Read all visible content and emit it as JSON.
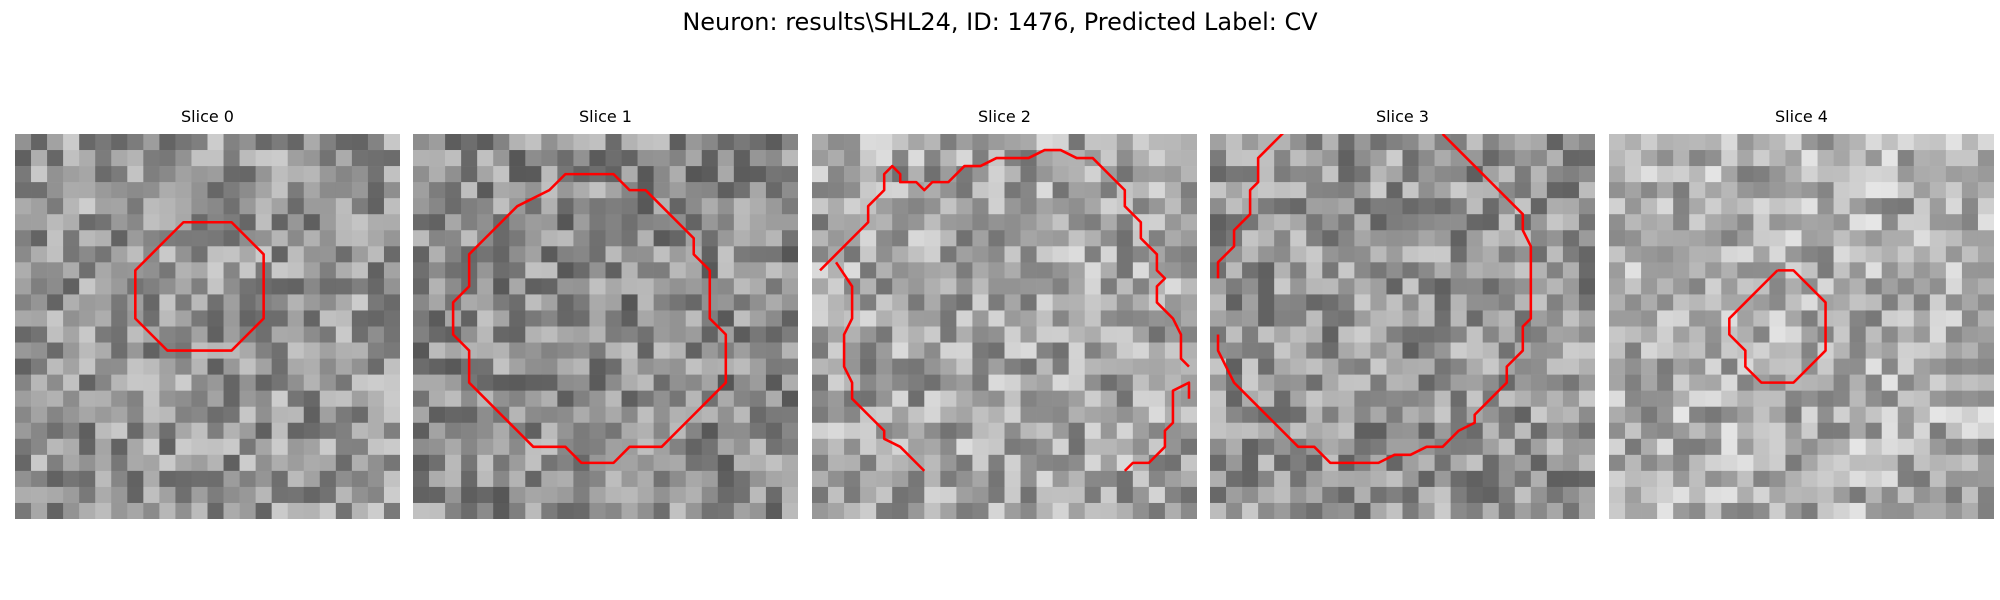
{
  "figure": {
    "title": "Neuron: results\\SHL24, ID: 1476, Predicted Label: CV"
  },
  "style": {
    "contour_color": "#ff0000"
  },
  "panels": [
    {
      "title": "Slice 0",
      "mean_gray": 150,
      "contours": [
        [
          [
            11.5,
            5.5
          ],
          [
            13.5,
            5.5
          ],
          [
            14.5,
            6.5
          ],
          [
            15.5,
            7.5
          ],
          [
            15.5,
            11.5
          ],
          [
            14.5,
            12.5
          ],
          [
            13.5,
            13.5
          ],
          [
            9.5,
            13.5
          ],
          [
            8.5,
            12.5
          ],
          [
            7.5,
            11.5
          ],
          [
            7.5,
            8.5
          ],
          [
            8.5,
            7.5
          ],
          [
            9.5,
            6.5
          ],
          [
            10.5,
            5.5
          ],
          [
            11.5,
            5.5
          ]
        ]
      ]
    },
    {
      "title": "Slice 1",
      "mean_gray": 140,
      "contours": [
        [
          [
            11.5,
            2.5
          ],
          [
            12.5,
            2.5
          ],
          [
            13.5,
            3.5
          ],
          [
            14.5,
            3.5
          ],
          [
            15.5,
            4.5
          ],
          [
            16.5,
            5.5
          ],
          [
            17.5,
            6.5
          ],
          [
            17.5,
            7.5
          ],
          [
            18.5,
            8.5
          ],
          [
            18.5,
            11.5
          ],
          [
            19.5,
            12.5
          ],
          [
            19.5,
            15.5
          ],
          [
            18.5,
            16.5
          ],
          [
            17.5,
            17.5
          ],
          [
            16.5,
            18.5
          ],
          [
            15.5,
            19.5
          ],
          [
            13.5,
            19.5
          ],
          [
            12.5,
            20.5
          ],
          [
            10.5,
            20.5
          ],
          [
            9.5,
            19.5
          ],
          [
            7.5,
            19.5
          ],
          [
            6.5,
            18.5
          ],
          [
            5.5,
            17.5
          ],
          [
            4.5,
            16.5
          ],
          [
            3.5,
            15.5
          ],
          [
            3.5,
            13.5
          ],
          [
            2.5,
            12.5
          ],
          [
            2.5,
            10.5
          ],
          [
            3.5,
            9.5
          ],
          [
            3.5,
            7.5
          ],
          [
            4.5,
            6.5
          ],
          [
            5.5,
            5.5
          ],
          [
            6.5,
            4.5
          ],
          [
            8.5,
            3.5
          ],
          [
            9.5,
            2.5
          ],
          [
            11.5,
            2.5
          ]
        ]
      ]
    },
    {
      "title": "Slice 2",
      "mean_gray": 165,
      "contours": [
        [
          [
            0.5,
            8.5
          ],
          [
            1.5,
            7.5
          ],
          [
            2.5,
            6.5
          ],
          [
            3.5,
            5.5
          ],
          [
            3.5,
            4.5
          ],
          [
            4.5,
            3.5
          ],
          [
            4.5,
            2.5
          ],
          [
            5.0,
            2.0
          ],
          [
            5.5,
            2.5
          ],
          [
            5.5,
            3.0
          ],
          [
            6.5,
            3.0
          ],
          [
            7.0,
            3.5
          ],
          [
            7.5,
            3.0
          ],
          [
            8.5,
            3.0
          ],
          [
            9.5,
            2.0
          ],
          [
            10.5,
            2.0
          ],
          [
            11.5,
            1.5
          ],
          [
            13.5,
            1.5
          ],
          [
            14.5,
            1.0
          ],
          [
            15.5,
            1.0
          ],
          [
            16.5,
            1.5
          ],
          [
            17.5,
            1.5
          ],
          [
            18.5,
            2.5
          ],
          [
            19.5,
            3.5
          ],
          [
            19.5,
            4.5
          ],
          [
            20.5,
            5.5
          ],
          [
            20.5,
            6.5
          ],
          [
            21.5,
            7.5
          ],
          [
            21.5,
            8.5
          ],
          [
            22.0,
            9.0
          ],
          [
            21.5,
            9.5
          ],
          [
            21.5,
            10.5
          ],
          [
            22.5,
            11.5
          ],
          [
            23.0,
            12.5
          ],
          [
            23.0,
            14.0
          ],
          [
            23.5,
            14.5
          ]
        ],
        [
          [
            1.5,
            8.0
          ],
          [
            2.5,
            9.5
          ],
          [
            2.5,
            11.5
          ],
          [
            2.0,
            12.5
          ],
          [
            2.0,
            14.5
          ],
          [
            2.5,
            15.5
          ],
          [
            2.5,
            16.5
          ],
          [
            3.5,
            17.5
          ],
          [
            4.5,
            18.5
          ],
          [
            4.5,
            19.0
          ],
          [
            5.5,
            19.5
          ],
          [
            6.5,
            20.5
          ],
          [
            7.0,
            21.0
          ]
        ],
        [
          [
            19.5,
            21.0
          ],
          [
            20.0,
            20.5
          ],
          [
            21.0,
            20.5
          ],
          [
            22.0,
            19.5
          ],
          [
            22.0,
            18.5
          ],
          [
            22.5,
            18.0
          ],
          [
            22.5,
            16.0
          ],
          [
            23.5,
            15.5
          ],
          [
            23.5,
            16.5
          ]
        ]
      ]
    },
    {
      "title": "Slice 3",
      "mean_gray": 150,
      "contours": [
        [
          [
            5.0,
            -0.5
          ],
          [
            4.5,
            0.0
          ],
          [
            3.5,
            1.0
          ],
          [
            3.0,
            1.5
          ],
          [
            3.0,
            3.0
          ],
          [
            2.5,
            3.5
          ],
          [
            2.5,
            5.0
          ],
          [
            1.5,
            6.0
          ],
          [
            1.5,
            7.0
          ],
          [
            0.5,
            8.0
          ],
          [
            0.5,
            9.0
          ]
        ],
        [
          [
            14.5,
            0.0
          ],
          [
            15.5,
            1.0
          ],
          [
            16.5,
            2.0
          ],
          [
            17.5,
            3.0
          ],
          [
            18.5,
            4.0
          ],
          [
            19.5,
            5.0
          ],
          [
            19.5,
            6.0
          ],
          [
            20.0,
            7.0
          ],
          [
            20.0,
            11.5
          ],
          [
            19.5,
            12.0
          ],
          [
            19.5,
            13.5
          ],
          [
            18.5,
            14.5
          ],
          [
            18.5,
            15.5
          ],
          [
            17.5,
            16.5
          ],
          [
            16.5,
            17.5
          ],
          [
            16.5,
            18.0
          ],
          [
            15.5,
            18.5
          ],
          [
            14.5,
            19.5
          ],
          [
            13.5,
            19.5
          ],
          [
            12.5,
            20.0
          ],
          [
            11.5,
            20.0
          ],
          [
            10.5,
            20.5
          ],
          [
            7.5,
            20.5
          ],
          [
            6.5,
            19.5
          ],
          [
            5.5,
            19.5
          ],
          [
            4.5,
            18.5
          ],
          [
            3.5,
            17.5
          ],
          [
            2.5,
            16.5
          ],
          [
            1.5,
            15.5
          ],
          [
            1.0,
            14.5
          ],
          [
            0.5,
            13.5
          ],
          [
            0.5,
            12.5
          ]
        ]
      ]
    },
    {
      "title": "Slice 4",
      "mean_gray": 175,
      "contours": [
        [
          [
            10.5,
            8.5
          ],
          [
            11.5,
            8.5
          ],
          [
            12.5,
            9.5
          ],
          [
            13.5,
            10.5
          ],
          [
            13.5,
            13.5
          ],
          [
            12.5,
            14.5
          ],
          [
            11.5,
            15.5
          ],
          [
            9.5,
            15.5
          ],
          [
            8.5,
            14.5
          ],
          [
            8.5,
            13.5
          ],
          [
            7.5,
            12.5
          ],
          [
            7.5,
            11.5
          ],
          [
            8.5,
            10.5
          ],
          [
            9.5,
            9.5
          ],
          [
            10.5,
            8.5
          ]
        ]
      ]
    }
  ]
}
